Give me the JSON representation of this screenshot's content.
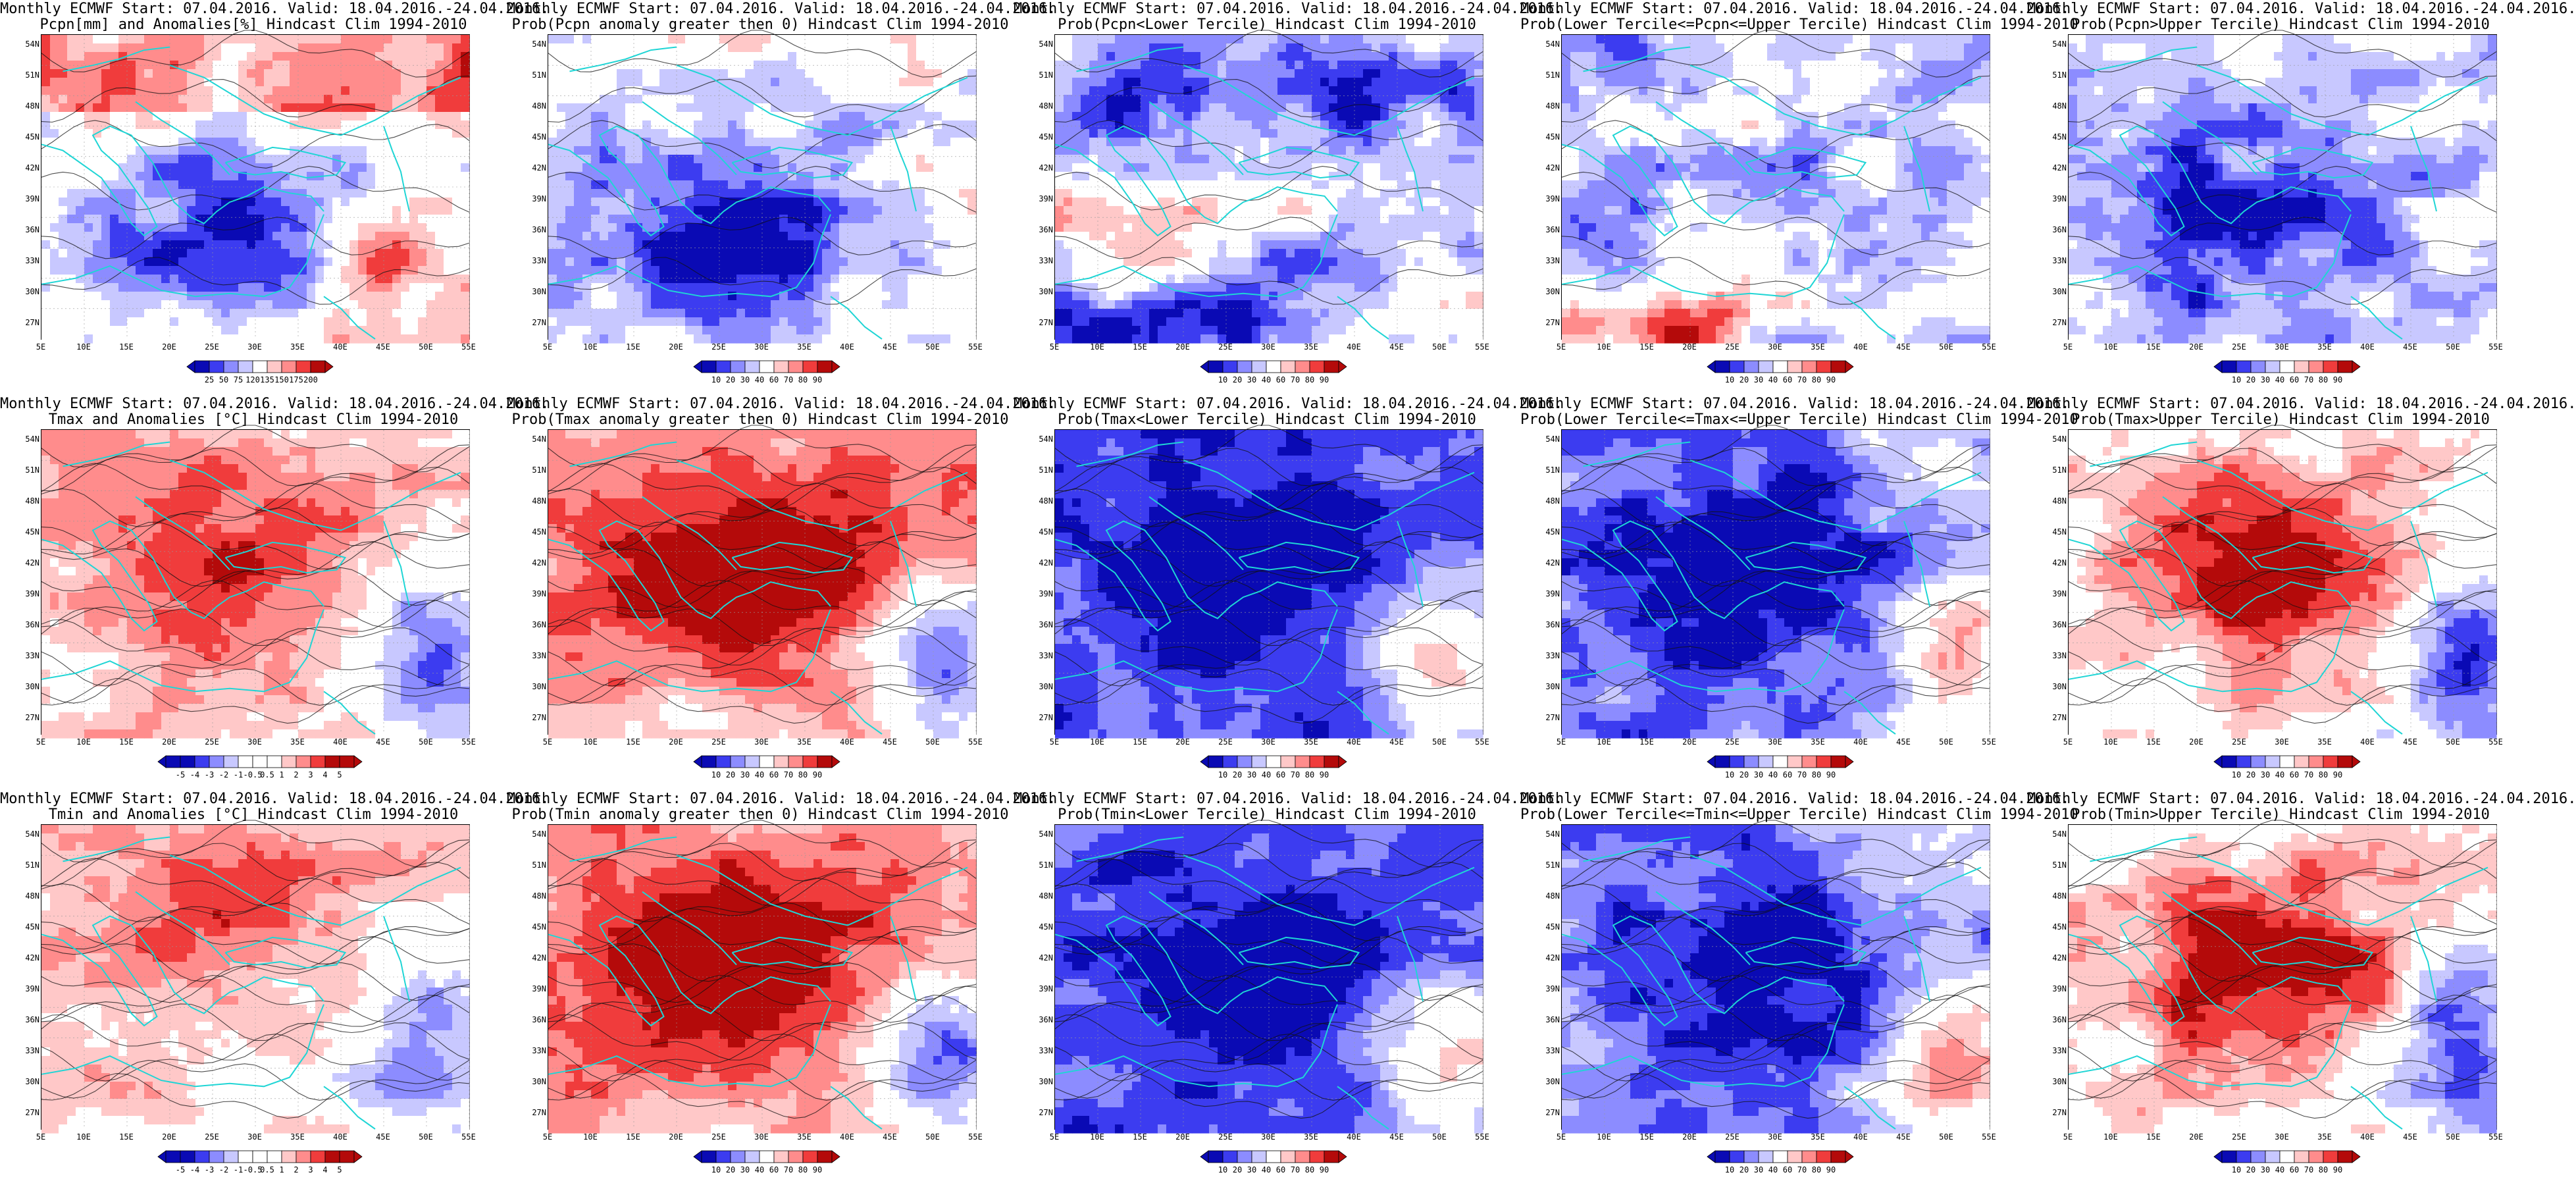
{
  "figure": {
    "panels": [
      {
        "id": "p-precip-anom",
        "title1": "Monthly ECMWF Start: 07.04.2016. Valid: 18.04.2016.-24.04.2016.",
        "title2": "Pcpn[mm] and Anomalies[%] Hindcast Clim 1994-2010",
        "scheme": "precip-anom",
        "cbar": "pct",
        "colorbar_ticks": [
          "25",
          "50",
          "75",
          "120",
          "135",
          "150",
          "175",
          "200"
        ]
      },
      {
        "id": "p-precip-prob-gt0",
        "title1": "Monthly ECMWF Start: 07.04.2016. Valid: 18.04.2016.-24.04.2016.",
        "title2": "Prob(Pcpn anomaly greater then 0) Hindcast Clim 1994-2010",
        "scheme": "precip-gt0",
        "cbar": "prob",
        "colorbar_ticks": [
          "10",
          "20",
          "30",
          "40",
          "60",
          "70",
          "80",
          "90"
        ]
      },
      {
        "id": "p-precip-prob-lower",
        "title1": "Monthly ECMWF Start: 07.04.2016. Valid: 18.04.2016.-24.04.2016.",
        "title2": "Prob(Pcpn<Lower Tercile) Hindcast Clim 1994-2010",
        "scheme": "precip-lower",
        "cbar": "prob",
        "colorbar_ticks": [
          "10",
          "20",
          "30",
          "40",
          "60",
          "70",
          "80",
          "90"
        ]
      },
      {
        "id": "p-precip-prob-middle",
        "title1": "Monthly ECMWF Start: 07.04.2016. Valid: 18.04.2016.-24.04.2016.",
        "title2": "Prob(Lower Tercile<=Pcpn<=Upper Tercile) Hindcast Clim 1994-2010",
        "scheme": "precip-middle",
        "cbar": "prob",
        "colorbar_ticks": [
          "10",
          "20",
          "30",
          "40",
          "60",
          "70",
          "80",
          "90"
        ]
      },
      {
        "id": "p-precip-prob-upper",
        "title1": "Monthly ECMWF Start: 07.04.2016. Valid: 18.04.2016.-24.04.2016.",
        "title2": "Prob(Pcpn>Upper Tercile) Hindcast Clim 1994-2010",
        "scheme": "precip-upper",
        "cbar": "prob",
        "colorbar_ticks": [
          "10",
          "20",
          "30",
          "40",
          "60",
          "70",
          "80",
          "90"
        ]
      },
      {
        "id": "p-tmax-anom",
        "title1": "Monthly ECMWF Start: 07.04.2016. Valid: 18.04.2016.-24.04.2016.",
        "title2": "Tmax and Anomalies [°C] Hindcast Clim 1994-2010",
        "scheme": "temp-anom-max",
        "cbar": "anom",
        "colorbar_ticks": [
          "-5",
          "-4",
          "-3",
          "-2",
          "-1",
          "-0.5",
          "0.5",
          "1",
          "2",
          "3",
          "4",
          "5"
        ]
      },
      {
        "id": "p-tmax-prob-gt0",
        "title1": "Monthly ECMWF Start: 07.04.2016. Valid: 18.04.2016.-24.04.2016.",
        "title2": "Prob(Tmax anomaly greater then 0) Hindcast Clim 1994-2010",
        "scheme": "temp-gt0",
        "cbar": "prob",
        "colorbar_ticks": [
          "10",
          "20",
          "30",
          "40",
          "60",
          "70",
          "80",
          "90"
        ]
      },
      {
        "id": "p-tmax-prob-lower",
        "title1": "Monthly ECMWF Start: 07.04.2016. Valid: 18.04.2016.-24.04.2016.",
        "title2": "Prob(Tmax<Lower Tercile) Hindcast Clim 1994-2010",
        "scheme": "temp-lower",
        "cbar": "prob",
        "colorbar_ticks": [
          "10",
          "20",
          "30",
          "40",
          "60",
          "70",
          "80",
          "90"
        ]
      },
      {
        "id": "p-tmax-prob-middle",
        "title1": "Monthly ECMWF Start: 07.04.2016. Valid: 18.04.2016.-24.04.2016.",
        "title2": "Prob(Lower Tercile<=Tmax<=Upper Tercile) Hindcast Clim 1994-2010",
        "scheme": "temp-middle",
        "cbar": "prob",
        "colorbar_ticks": [
          "10",
          "20",
          "30",
          "40",
          "60",
          "70",
          "80",
          "90"
        ]
      },
      {
        "id": "p-tmax-prob-upper",
        "title1": "Monthly ECMWF Start: 07.04.2016. Valid: 18.04.2016.-24.04.2016.",
        "title2": "Prob(Tmax>Upper Tercile) Hindcast Clim 1994-2010",
        "scheme": "temp-upper",
        "cbar": "prob",
        "colorbar_ticks": [
          "10",
          "20",
          "30",
          "40",
          "60",
          "70",
          "80",
          "90"
        ]
      },
      {
        "id": "p-tmin-anom",
        "title1": "Monthly ECMWF Start: 07.04.2016. Valid: 18.04.2016.-24.04.2016.",
        "title2": "Tmin and Anomalies [°C] Hindcast Clim 1994-2010",
        "scheme": "temp-anom-min",
        "cbar": "anom",
        "colorbar_ticks": [
          "-5",
          "-4",
          "-3",
          "-2",
          "-1",
          "-0.5",
          "0.5",
          "1",
          "2",
          "3",
          "4",
          "5"
        ]
      },
      {
        "id": "p-tmin-prob-gt0",
        "title1": "Monthly ECMWF Start: 07.04.2016. Valid: 18.04.2016.-24.04.2016.",
        "title2": "Prob(Tmin anomaly greater then 0) Hindcast Clim 1994-2010",
        "scheme": "temp-gt0",
        "cbar": "prob",
        "colorbar_ticks": [
          "10",
          "20",
          "30",
          "40",
          "60",
          "70",
          "80",
          "90"
        ]
      },
      {
        "id": "p-tmin-prob-lower",
        "title1": "Monthly ECMWF Start: 07.04.2016. Valid: 18.04.2016.-24.04.2016.",
        "title2": "Prob(Tmin<Lower Tercile) Hindcast Clim 1994-2010",
        "scheme": "temp-lower",
        "cbar": "prob",
        "colorbar_ticks": [
          "10",
          "20",
          "30",
          "40",
          "60",
          "70",
          "80",
          "90"
        ]
      },
      {
        "id": "p-tmin-prob-middle",
        "title1": "Monthly ECMWF Start: 07.04.2016. Valid: 18.04.2016.-24.04.2016.",
        "title2": "Prob(Lower Tercile<=Tmin<=Upper Tercile) Hindcast Clim 1994-2010",
        "scheme": "temp-middle",
        "cbar": "prob",
        "colorbar_ticks": [
          "10",
          "20",
          "30",
          "40",
          "60",
          "70",
          "80",
          "90"
        ]
      },
      {
        "id": "p-tmin-prob-upper",
        "title1": "Monthly ECMWF Start: 07.04.2016. Valid: 18.04.2016.-24.04.2016.",
        "title2": "Prob(Tmin>Upper Tercile) Hindcast Clim 1994-2010",
        "scheme": "temp-upper",
        "cbar": "prob",
        "colorbar_ticks": [
          "10",
          "20",
          "30",
          "40",
          "60",
          "70",
          "80",
          "90"
        ]
      }
    ],
    "lat_ticks": [
      "54N",
      "51N",
      "48N",
      "45N",
      "42N",
      "39N",
      "36N",
      "33N",
      "30N",
      "27N"
    ],
    "lon_ticks": [
      "5E",
      "10E",
      "15E",
      "20E",
      "25E",
      "30E",
      "35E",
      "40E",
      "45E",
      "50E",
      "55E"
    ],
    "colors": {
      "blue_dark": "#0a0ab4",
      "blue_mid": "#3c3cf0",
      "blue_light": "#8c8cff",
      "blue_pale": "#c8c8ff",
      "white": "#ffffff",
      "red_pale": "#ffc8c8",
      "red_light": "#ff8c8c",
      "red_mid": "#f03c3c",
      "red_dark": "#b40a0a",
      "coast": "#1fd5d5",
      "contour": "#111111"
    }
  }
}
